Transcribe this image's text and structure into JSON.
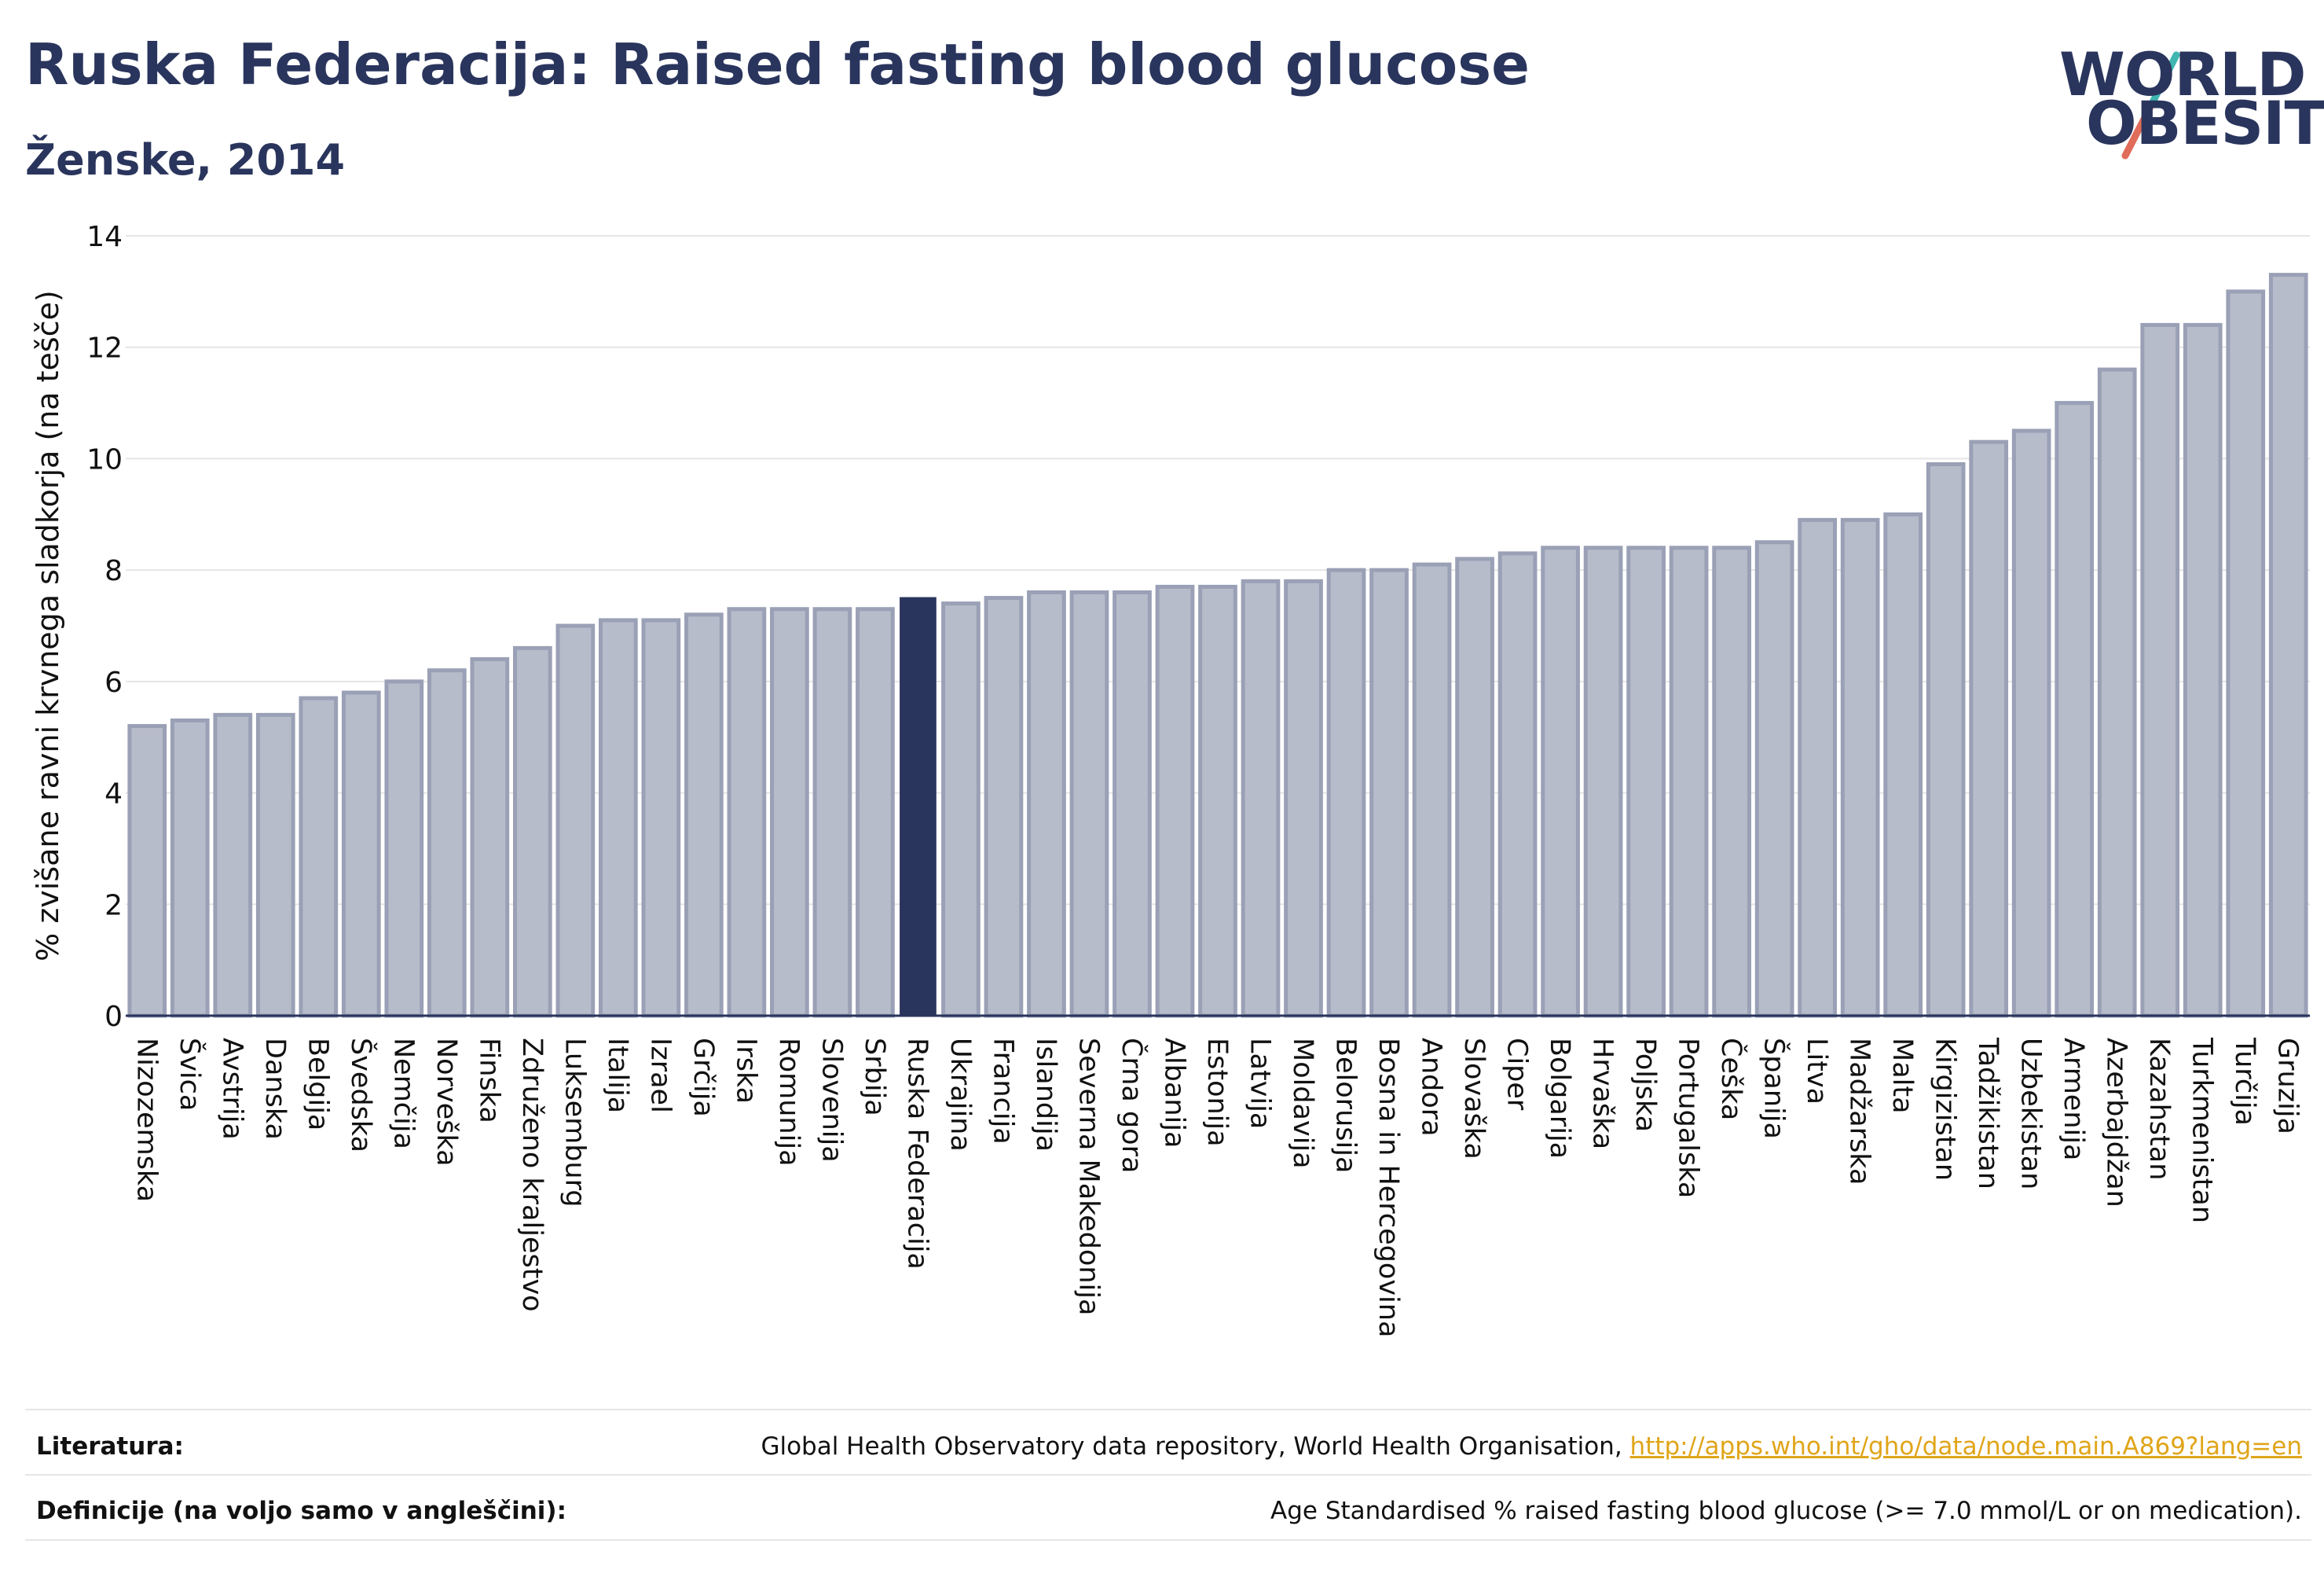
{
  "header": {
    "title": "Ruska Federacija: Raised fasting blood glucose",
    "subtitle": "Ženske, 2014"
  },
  "logo": {
    "line1": "WORLD",
    "line2": "OBESITY",
    "icon": "world-obesity-logo"
  },
  "colors": {
    "highlight_bar": "#2a355d",
    "bar": "#b7bccb",
    "bar_border": "#9aa0b5",
    "text": "#2a355d",
    "link": "#e0a51a"
  },
  "chart_data": {
    "type": "bar",
    "ylabel": "% zvišane ravni krvnega sladkorja (na tešče)",
    "xlabel": "",
    "ylim": [
      0,
      14
    ],
    "yticks": [
      0,
      2,
      4,
      6,
      8,
      10,
      12,
      14
    ],
    "grid": true,
    "highlight": "Ruska Federacija",
    "categories": [
      "Nizozemska",
      "Švica",
      "Avstrija",
      "Danska",
      "Belgija",
      "Švedska",
      "Nemčija",
      "Norveška",
      "Finska",
      "Združeno kraljestvo",
      "Luksemburg",
      "Italija",
      "Izrael",
      "Grčija",
      "Irska",
      "Romunija",
      "Slovenija",
      "Srbija",
      "Ruska Federacija",
      "Ukrajina",
      "Francija",
      "Islandija",
      "Severna Makedonija",
      "Črna gora",
      "Albanija",
      "Estonija",
      "Latvija",
      "Moldavija",
      "Belorusija",
      "Bosna in Hercegovina",
      "Andora",
      "Slovaška",
      "Ciper",
      "Bolgarija",
      "Hrvaška",
      "Poljska",
      "Portugalska",
      "Češka",
      "Španija",
      "Litva",
      "Madžarska",
      "Malta",
      "Kirgizistan",
      "Tadžikistan",
      "Uzbekistan",
      "Armenija",
      "Azerbajdžan",
      "Kazahstan",
      "Turkmenistan",
      "Turčija",
      "Gruzija"
    ],
    "values": [
      5.2,
      5.3,
      5.4,
      5.4,
      5.7,
      5.8,
      6.0,
      6.2,
      6.4,
      6.6,
      7.0,
      7.1,
      7.1,
      7.2,
      7.3,
      7.3,
      7.3,
      7.3,
      7.5,
      7.4,
      7.5,
      7.6,
      7.6,
      7.6,
      7.7,
      7.7,
      7.8,
      7.8,
      8.0,
      8.0,
      8.1,
      8.2,
      8.3,
      8.4,
      8.4,
      8.4,
      8.4,
      8.4,
      8.5,
      8.9,
      8.9,
      9.0,
      9.9,
      10.3,
      10.5,
      11.0,
      11.6,
      12.4,
      12.4,
      13.0,
      13.3
    ]
  },
  "footer": {
    "sources_label": "Literatura:",
    "sources_text": "Global Health Observatory data repository, World Health Organisation, ",
    "sources_link": "http://apps.who.int/gho/data/node.main.A869?lang=en",
    "definitions_label": "Definicije (na voljo samo v angleščini):",
    "definitions_text": "Age Standardised % raised fasting blood glucose (>= 7.0 mmol/L or on medication)."
  }
}
